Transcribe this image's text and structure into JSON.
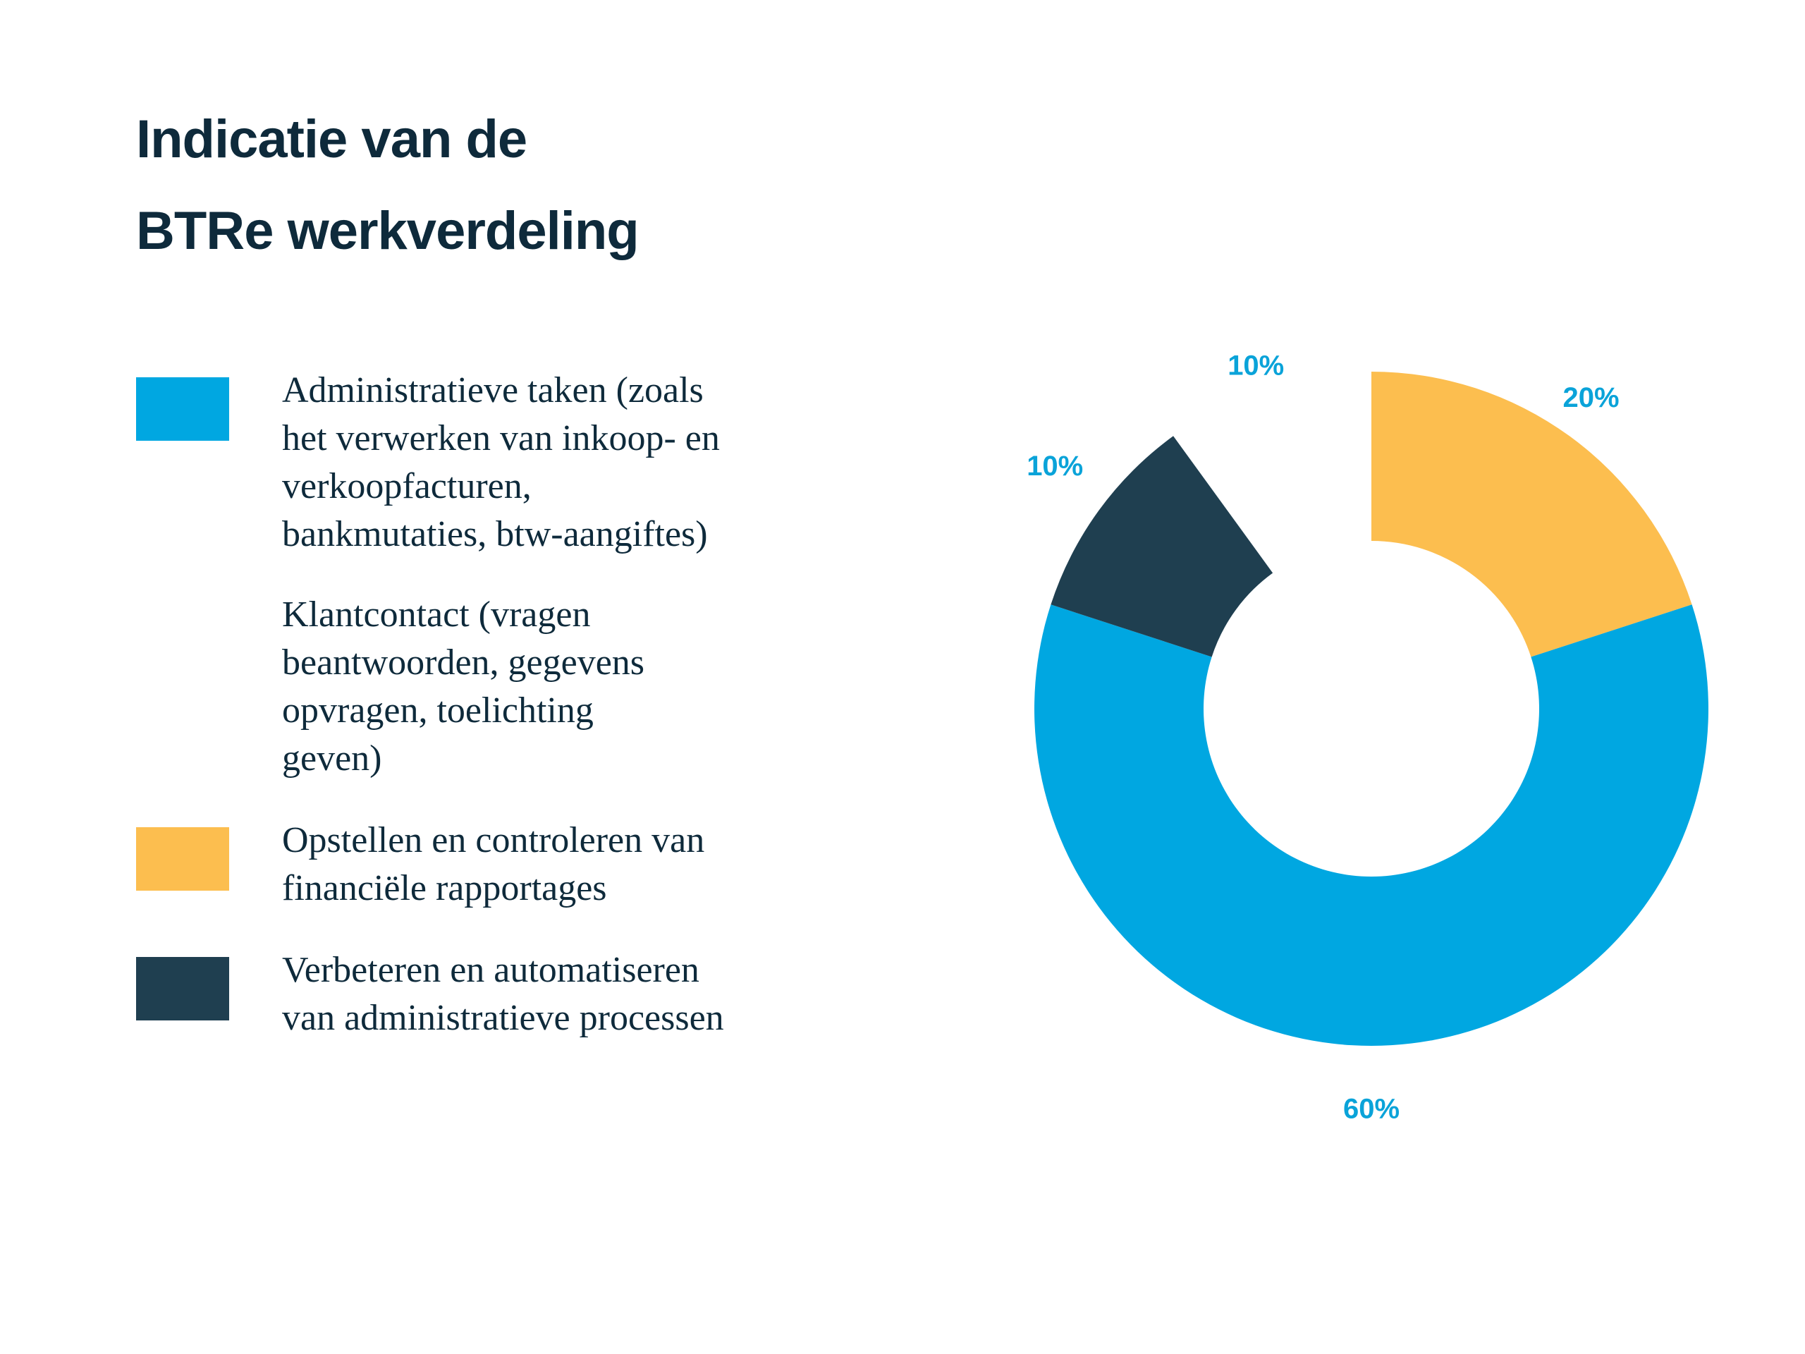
{
  "title": {
    "line1": "Indicatie van de",
    "line2": "BTRe werkverdeling"
  },
  "legend": [
    {
      "text": "Administratieve taken (zoals\nhet verwerken van inkoop- en\nverkoopfacturen,\nbankmutaties, btw-aangiftes)",
      "color": "#00a7e1",
      "swatch": true
    },
    {
      "text": "Klantcontact (vragen\nbeantwoorden, gegevens\nopvragen, toelichting\ngeven)",
      "color": "#ffffff",
      "swatch": false
    },
    {
      "text": "Opstellen en controleren van\nfinanciële rapportages",
      "color": "#fcbe4f",
      "swatch": true
    },
    {
      "text": "Verbeteren en automatiseren\nvan administratieve processen",
      "color": "#1f3f50",
      "swatch": true
    }
  ],
  "chart_data": {
    "type": "pie",
    "variant": "donut",
    "start": "top",
    "direction": "clockwise",
    "label_color": "#0aa3d9",
    "slices": [
      {
        "label": "20%",
        "value": 20,
        "color": "#fcbe4f",
        "category": "Opstellen en controleren van financiële rapportages",
        "visible": true
      },
      {
        "label": "60%",
        "value": 60,
        "color": "#00a7e1",
        "category": "Administratieve taken",
        "visible": true
      },
      {
        "label": "10%",
        "value": 10,
        "color": "#1f3f50",
        "category": "Verbeteren en automatiseren van administratieve processen",
        "visible": true
      },
      {
        "label": "10%",
        "value": 10,
        "color": "#ffffff",
        "category": "Klantcontact",
        "visible": false
      }
    ]
  }
}
